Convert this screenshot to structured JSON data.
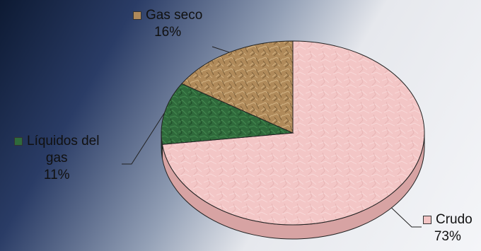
{
  "chart_data": {
    "type": "pie",
    "title": "",
    "series": [
      {
        "values": [
          73,
          11,
          16
        ],
        "labels": [
          "Crudo",
          "Líquidos del gas",
          "Gas seco"
        ]
      }
    ],
    "slices": [
      {
        "label": "Crudo",
        "value": 73,
        "pct_text": "73%",
        "color": "#f2c4c4"
      },
      {
        "label": "Líquidos del gas",
        "label_lines": [
          "Líquidos del",
          "gas"
        ],
        "value": 11,
        "pct_text": "11%",
        "color": "#2f6a3b"
      },
      {
        "label": "Gas seco",
        "value": 16,
        "pct_text": "16%",
        "color": "#b08a5a"
      }
    ],
    "legend": "none"
  }
}
